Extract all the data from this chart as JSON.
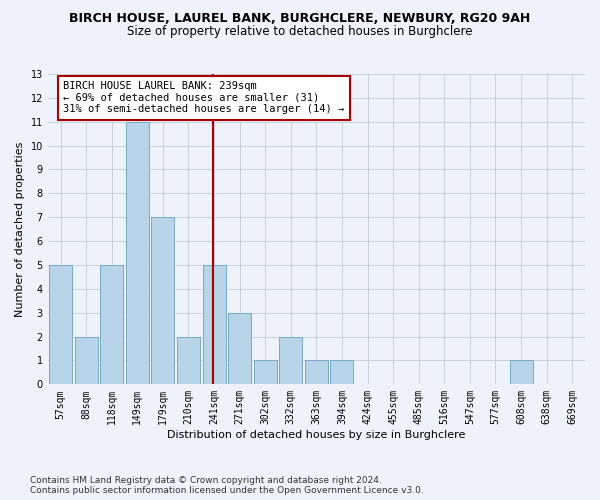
{
  "title": "BIRCH HOUSE, LAUREL BANK, BURGHCLERE, NEWBURY, RG20 9AH",
  "subtitle": "Size of property relative to detached houses in Burghclere",
  "xlabel": "Distribution of detached houses by size in Burghclere",
  "ylabel": "Number of detached properties",
  "categories": [
    "57sqm",
    "88sqm",
    "118sqm",
    "149sqm",
    "179sqm",
    "210sqm",
    "241sqm",
    "271sqm",
    "302sqm",
    "332sqm",
    "363sqm",
    "394sqm",
    "424sqm",
    "455sqm",
    "485sqm",
    "516sqm",
    "547sqm",
    "577sqm",
    "608sqm",
    "638sqm",
    "669sqm"
  ],
  "values": [
    5,
    2,
    5,
    11,
    7,
    2,
    5,
    3,
    1,
    2,
    1,
    1,
    0,
    0,
    0,
    0,
    0,
    0,
    1,
    0,
    0
  ],
  "bar_color": "#b8d4e8",
  "bar_edge_color": "#7aaac8",
  "background_color": "#eef2fa",
  "grid_color": "#c8d0e0",
  "vline_color": "#aa0000",
  "annotation_text": "BIRCH HOUSE LAUREL BANK: 239sqm\n← 69% of detached houses are smaller (31)\n31% of semi-detached houses are larger (14) →",
  "ylim": [
    0,
    13
  ],
  "yticks": [
    0,
    1,
    2,
    3,
    4,
    5,
    6,
    7,
    8,
    9,
    10,
    11,
    12,
    13
  ],
  "footnote1": "Contains HM Land Registry data © Crown copyright and database right 2024.",
  "footnote2": "Contains public sector information licensed under the Open Government Licence v3.0.",
  "title_fontsize": 9,
  "subtitle_fontsize": 8.5,
  "ylabel_fontsize": 8,
  "xlabel_fontsize": 8,
  "tick_fontsize": 7,
  "annotation_fontsize": 7.5,
  "footnote_fontsize": 6.5
}
